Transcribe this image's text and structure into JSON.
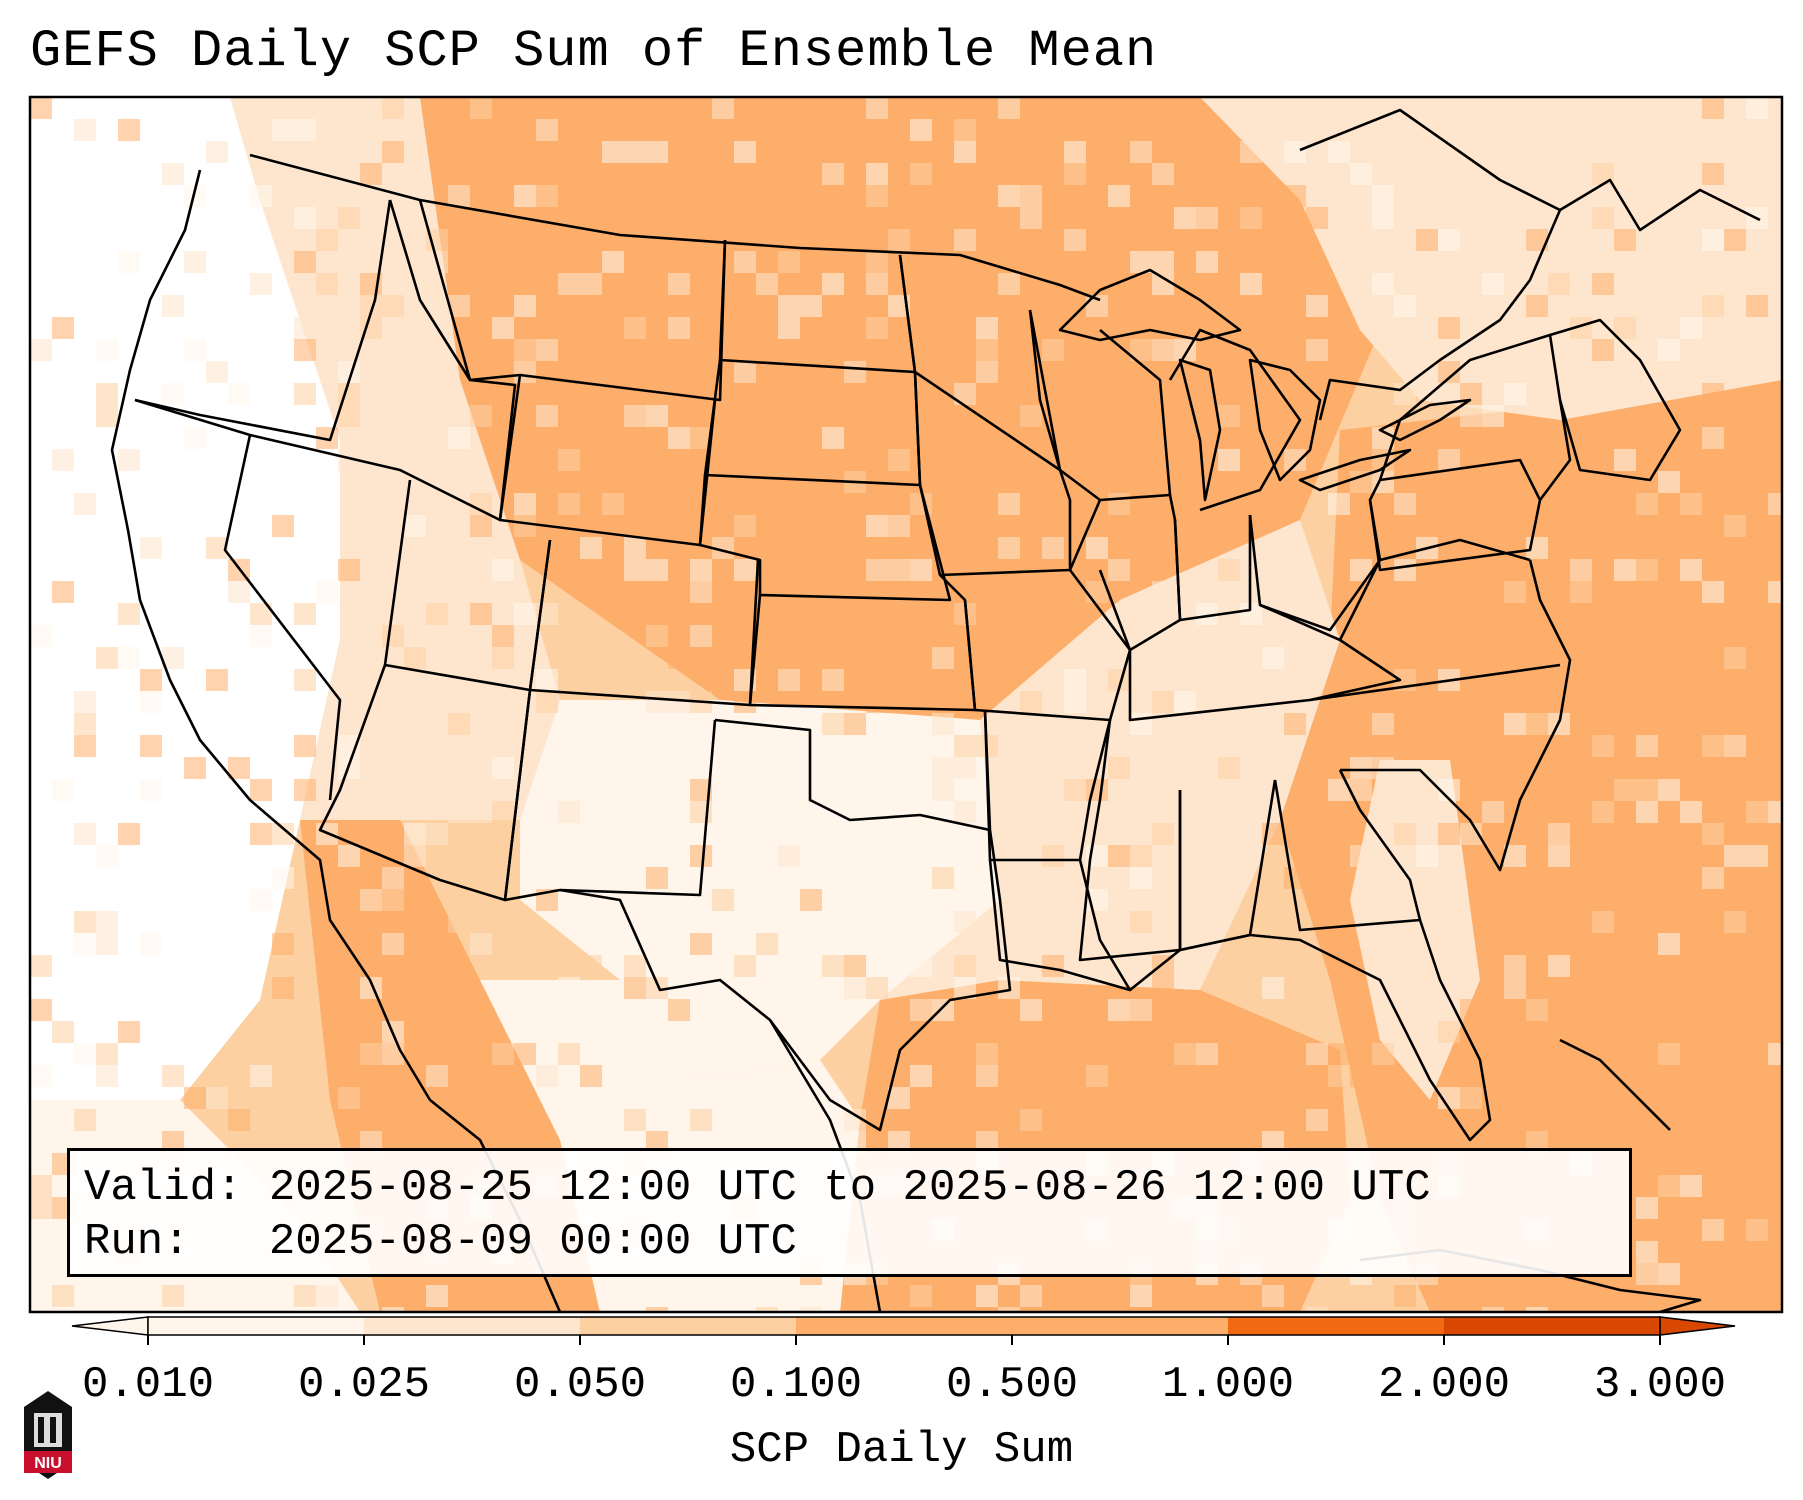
{
  "title": "GEFS Daily SCP Sum of Ensemble Mean",
  "info": {
    "valid_label": "Valid:",
    "valid_value": "2025-08-25 12:00 UTC to 2025-08-26 12:00 UTC",
    "run_label": "Run:",
    "run_value": "2025-08-09 00:00 UTC"
  },
  "colorbar": {
    "label": "SCP Daily Sum",
    "ticks": [
      "0.010",
      "0.025",
      "0.050",
      "0.100",
      "0.500",
      "1.000",
      "2.000",
      "3.000"
    ],
    "colors": [
      "#fff5eb",
      "#fee6ce",
      "#fdd0a2",
      "#fdae6b",
      "#fdae6b",
      "#f16913",
      "#d94801"
    ],
    "extend": "both"
  },
  "logo": {
    "text": "NIU",
    "color": "#c8102e"
  },
  "colors": {
    "low": "#fff5eb",
    "light": "#fee6ce",
    "mid": "#fdd0a2",
    "orange": "#fdae6b",
    "border": "#000000"
  }
}
